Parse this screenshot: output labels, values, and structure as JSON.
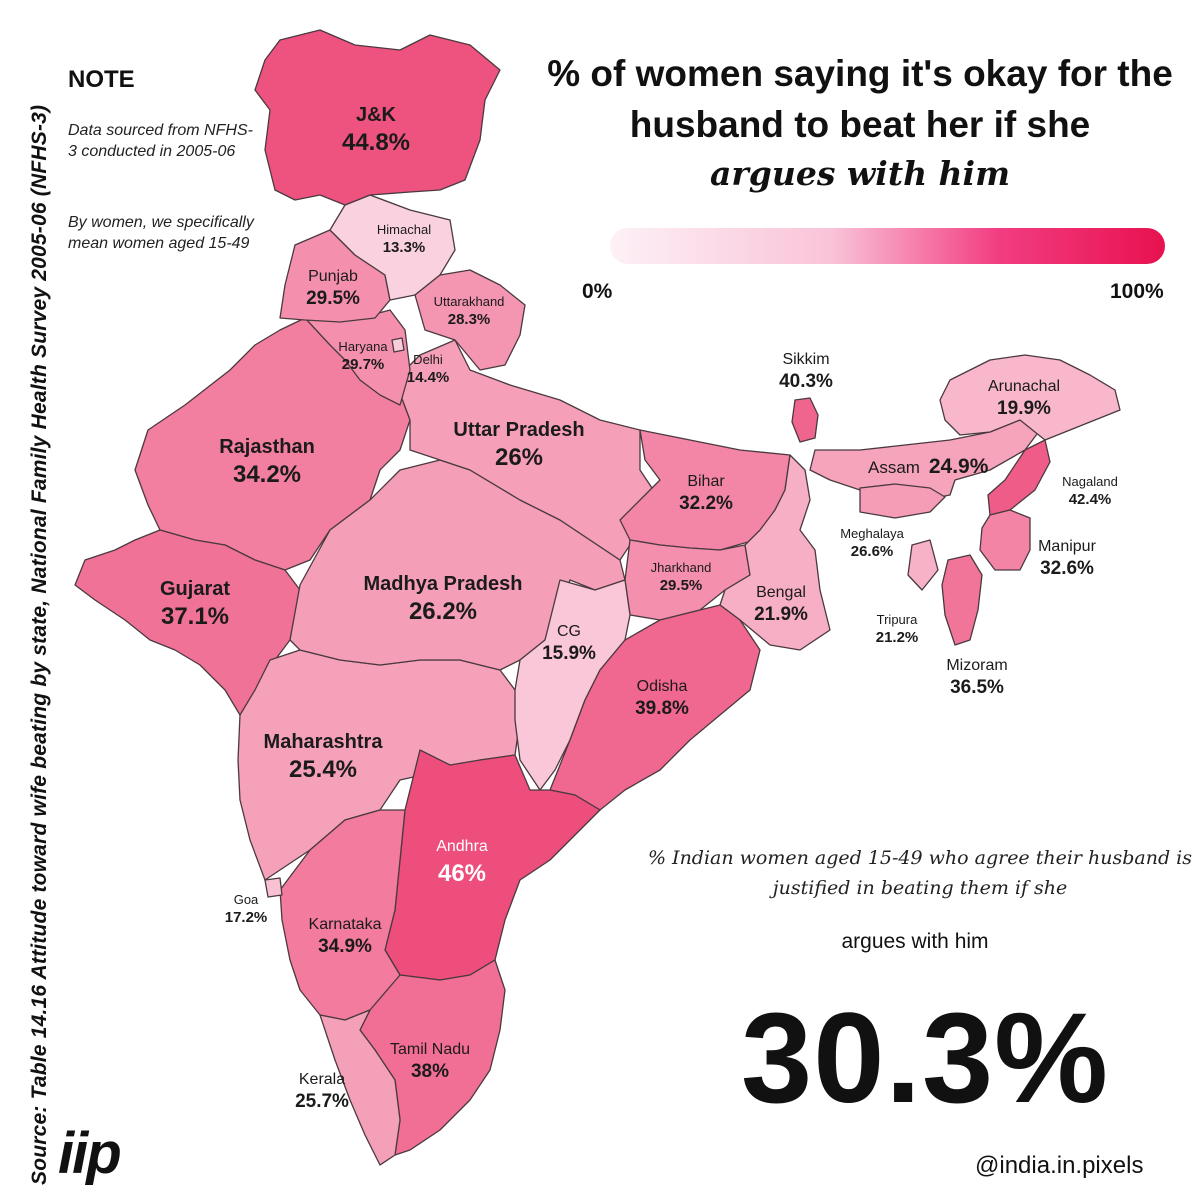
{
  "source": "Source:  Table 14.16 Attitude toward wife beating by state, National Family Health Survey 2005-06 (NFHS-3)",
  "note": {
    "heading": "NOTE",
    "line1": "Data sourced from NFHS-3 conducted in 2005-06",
    "line2": "By women, we specifically mean women aged 15-49"
  },
  "title": {
    "main": "% of women saying it's okay for the husband to beat her if she",
    "emphasis": "argues with him"
  },
  "legend": {
    "min_label": "0%",
    "max_label": "100%",
    "color_min": "#fdf1f6",
    "color_max": "#e8114f"
  },
  "states": [
    {
      "id": "jk",
      "name": "J&K",
      "value": "44.8%"
    },
    {
      "id": "himachal",
      "name": "Himachal",
      "value": "13.3%"
    },
    {
      "id": "punjab",
      "name": "Punjab",
      "value": "29.5%"
    },
    {
      "id": "uttarakhand",
      "name": "Uttarakhand",
      "value": "28.3%"
    },
    {
      "id": "haryana",
      "name": "Haryana",
      "value": "29.7%"
    },
    {
      "id": "delhi",
      "name": "Delhi",
      "value": "14.4%"
    },
    {
      "id": "rajasthan",
      "name": "Rajasthan",
      "value": "34.2%"
    },
    {
      "id": "up",
      "name": "Uttar Pradesh",
      "value": "26%"
    },
    {
      "id": "bihar",
      "name": "Bihar",
      "value": "32.2%"
    },
    {
      "id": "sikkim",
      "name": "Sikkim",
      "value": "40.3%"
    },
    {
      "id": "arunachal",
      "name": "Arunachal",
      "value": "19.9%"
    },
    {
      "id": "assam",
      "name": "Assam",
      "value": "24.9%"
    },
    {
      "id": "nagaland",
      "name": "Nagaland",
      "value": "42.4%"
    },
    {
      "id": "meghalaya",
      "name": "Meghalaya",
      "value": "26.6%"
    },
    {
      "id": "manipur",
      "name": "Manipur",
      "value": "32.6%"
    },
    {
      "id": "tripura",
      "name": "Tripura",
      "value": "21.2%"
    },
    {
      "id": "mizoram",
      "name": "Mizoram",
      "value": "36.5%"
    },
    {
      "id": "gujarat",
      "name": "Gujarat",
      "value": "37.1%"
    },
    {
      "id": "mp",
      "name": "Madhya Pradesh",
      "value": "26.2%"
    },
    {
      "id": "jharkhand",
      "name": "Jharkhand",
      "value": "29.5%"
    },
    {
      "id": "bengal",
      "name": "Bengal",
      "value": "21.9%"
    },
    {
      "id": "cg",
      "name": "CG",
      "value": "15.9%"
    },
    {
      "id": "odisha",
      "name": "Odisha",
      "value": "39.8%"
    },
    {
      "id": "maharashtra",
      "name": "Maharashtra",
      "value": "25.4%"
    },
    {
      "id": "andhra",
      "name": "Andhra",
      "value": "46%"
    },
    {
      "id": "goa",
      "name": "Goa",
      "value": "17.2%"
    },
    {
      "id": "karnataka",
      "name": "Karnataka",
      "value": "34.9%"
    },
    {
      "id": "tamilnadu",
      "name": "Tamil Nadu",
      "value": "38%"
    },
    {
      "id": "kerala",
      "name": "Kerala",
      "value": "25.7%"
    },
    {
      "id": "gujarat_island",
      "name": "Gujarat",
      "value": ""
    }
  ],
  "summary": {
    "description": "% Indian women aged 15-49 who agree their husband is justified in beating them if she",
    "subject": "argues with him",
    "national_value": "30.3%"
  },
  "brand": {
    "logo": "iip",
    "handle": "@india.in.pixels"
  }
}
